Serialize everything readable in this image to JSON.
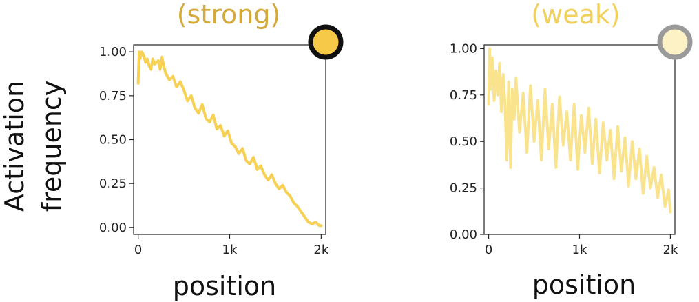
{
  "figure": {
    "ylabel_line1": "Activation",
    "ylabel_line2": "frequency"
  },
  "chart_data": [
    {
      "type": "line",
      "title": "(strong)",
      "xlabel": "position",
      "ylabel": "Activation frequency",
      "xlim": [
        -50,
        2050
      ],
      "ylim": [
        -0.04,
        1.04
      ],
      "xticks": [
        0,
        1000,
        2000
      ],
      "xtick_labels": [
        "0",
        "1k",
        "2k"
      ],
      "yticks": [
        0,
        0.25,
        0.5,
        0.75,
        1.0
      ],
      "ytick_labels": [
        "0.00",
        "0.25",
        "0.50",
        "0.75",
        "1.00"
      ],
      "color": "#f7d154",
      "title_color": "#d4aa3c",
      "badge": {
        "fill": "#f7c948",
        "ring": "#111111"
      },
      "series": [
        {
          "x": [
            0,
            10,
            20,
            40,
            60,
            80,
            100,
            120,
            140,
            160,
            180,
            200,
            220,
            240,
            260,
            280,
            300,
            340,
            380,
            420,
            460,
            500,
            540,
            580,
            620,
            660,
            700,
            740,
            780,
            820,
            860,
            900,
            940,
            980,
            1020,
            1060,
            1100,
            1140,
            1180,
            1220,
            1260,
            1300,
            1340,
            1380,
            1420,
            1460,
            1500,
            1540,
            1580,
            1620,
            1660,
            1700,
            1740,
            1780,
            1820,
            1860,
            1900,
            1940,
            1980,
            2000
          ],
          "values": [
            0.82,
            1.0,
            0.96,
            1.0,
            0.98,
            0.94,
            0.96,
            0.92,
            0.9,
            0.96,
            0.93,
            0.94,
            0.95,
            0.9,
            0.97,
            0.92,
            0.88,
            0.84,
            0.86,
            0.8,
            0.83,
            0.78,
            0.72,
            0.75,
            0.68,
            0.65,
            0.7,
            0.62,
            0.6,
            0.64,
            0.56,
            0.58,
            0.52,
            0.55,
            0.48,
            0.46,
            0.42,
            0.45,
            0.38,
            0.36,
            0.4,
            0.33,
            0.35,
            0.3,
            0.27,
            0.3,
            0.25,
            0.22,
            0.24,
            0.2,
            0.18,
            0.14,
            0.12,
            0.09,
            0.06,
            0.03,
            0.02,
            0.03,
            0.01,
            0.01
          ]
        }
      ]
    },
    {
      "type": "line",
      "title": "(weak)",
      "xlabel": "position",
      "ylabel": "",
      "xlim": [
        -50,
        2050
      ],
      "ylim": [
        0.0,
        1.02
      ],
      "xticks": [
        0,
        1000,
        2000
      ],
      "xtick_labels": [
        "0",
        "1k",
        "2k"
      ],
      "yticks": [
        0,
        0.25,
        0.5,
        0.75,
        1.0
      ],
      "ytick_labels": [
        "0.00",
        "0.25",
        "0.50",
        "0.75",
        "1.00"
      ],
      "color": "#f9e38c",
      "title_color": "#f2d05c",
      "badge": {
        "fill": "#fdf1c6",
        "ring": "#9a9a9a"
      },
      "series": [
        {
          "x": [
            0,
            10,
            20,
            40,
            60,
            80,
            100,
            120,
            140,
            160,
            180,
            200,
            220,
            240,
            260,
            280,
            300,
            340,
            380,
            420,
            460,
            500,
            540,
            580,
            620,
            660,
            700,
            740,
            780,
            820,
            860,
            900,
            940,
            980,
            1020,
            1060,
            1100,
            1140,
            1180,
            1220,
            1260,
            1300,
            1340,
            1380,
            1420,
            1460,
            1500,
            1540,
            1580,
            1620,
            1660,
            1700,
            1740,
            1780,
            1820,
            1860,
            1900,
            1940,
            1980,
            2000
          ],
          "values": [
            0.7,
            1.0,
            0.78,
            0.95,
            0.72,
            0.88,
            0.75,
            0.92,
            0.66,
            0.86,
            0.7,
            0.4,
            0.82,
            0.36,
            0.78,
            0.62,
            0.84,
            0.55,
            0.76,
            0.44,
            0.8,
            0.5,
            0.72,
            0.4,
            0.78,
            0.46,
            0.7,
            0.36,
            0.74,
            0.48,
            0.66,
            0.4,
            0.7,
            0.35,
            0.64,
            0.44,
            0.68,
            0.38,
            0.62,
            0.33,
            0.6,
            0.4,
            0.56,
            0.3,
            0.58,
            0.34,
            0.52,
            0.26,
            0.5,
            0.3,
            0.46,
            0.22,
            0.42,
            0.25,
            0.36,
            0.2,
            0.32,
            0.15,
            0.24,
            0.12
          ]
        }
      ]
    }
  ]
}
